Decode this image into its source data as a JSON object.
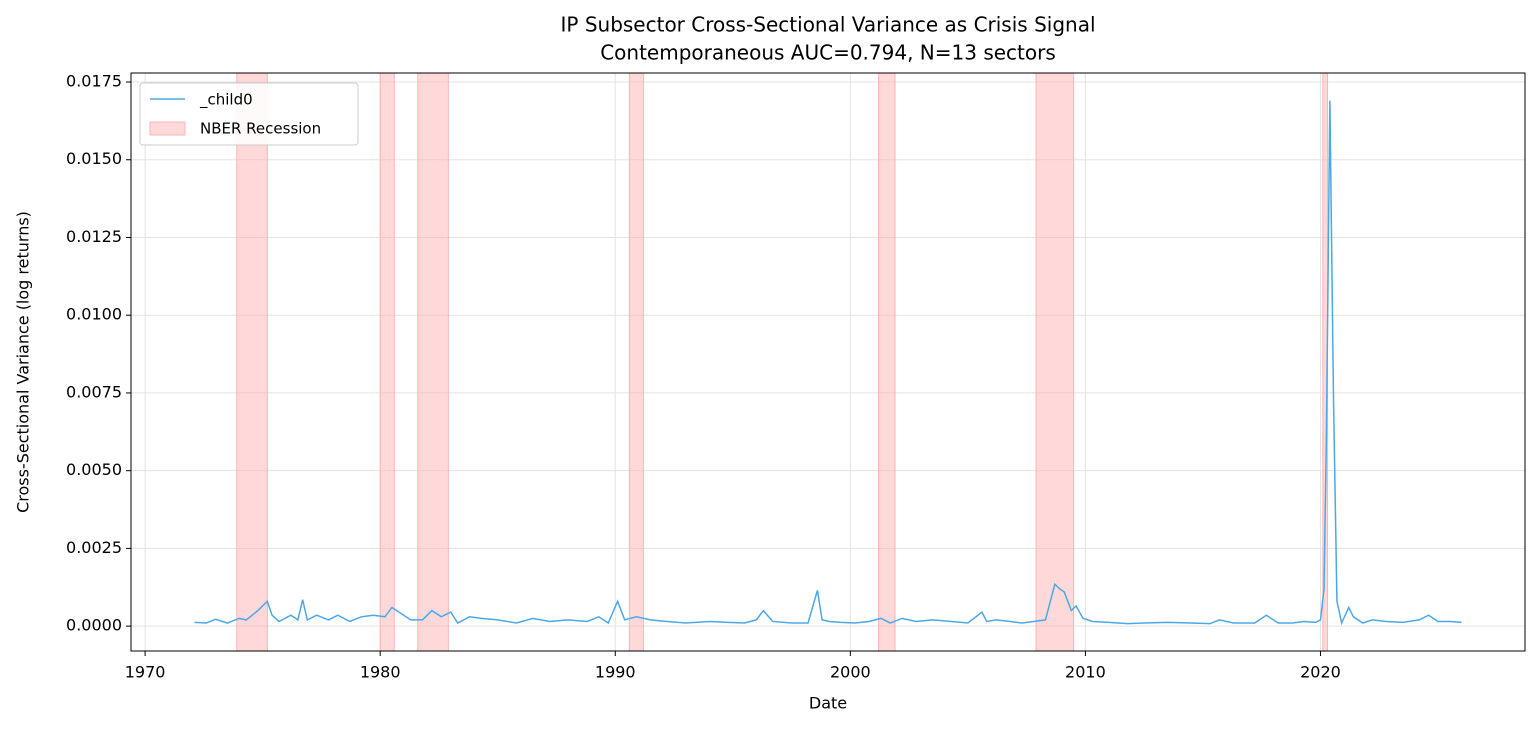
{
  "chart_data": {
    "type": "line",
    "title": "IP Subsector Cross-Sectional Variance as Crisis Signal",
    "subtitle": "Contemporaneous AUC=0.794, N=13 sectors",
    "x_label": "Date",
    "y_label": "Cross-Sectional Variance (log returns)",
    "x": [
      1972.1,
      1972.6,
      1973.0,
      1973.5,
      1974.0,
      1974.3,
      1974.8,
      1975.2,
      1975.4,
      1975.7,
      1976.2,
      1976.5,
      1976.7,
      1976.9,
      1977.3,
      1977.8,
      1978.2,
      1978.7,
      1979.2,
      1979.7,
      1980.2,
      1980.5,
      1980.8,
      1981.3,
      1981.8,
      1982.2,
      1982.6,
      1983.0,
      1983.3,
      1983.8,
      1984.3,
      1985.0,
      1985.8,
      1986.5,
      1987.2,
      1988.0,
      1988.8,
      1989.3,
      1989.7,
      1990.1,
      1990.4,
      1990.9,
      1991.5,
      1992.2,
      1993.0,
      1994.0,
      1994.8,
      1995.5,
      1996.0,
      1996.3,
      1996.7,
      1997.5,
      1998.2,
      1998.6,
      1998.8,
      1999.1,
      1999.6,
      2000.2,
      2000.8,
      2001.3,
      2001.7,
      2002.2,
      2002.8,
      2003.5,
      2004.3,
      2005.0,
      2005.6,
      2005.8,
      2006.2,
      2006.8,
      2007.3,
      2007.8,
      2008.3,
      2008.7,
      2008.9,
      2009.1,
      2009.4,
      2009.6,
      2009.9,
      2010.3,
      2011.0,
      2011.8,
      2012.5,
      2013.5,
      2014.5,
      2015.3,
      2015.7,
      2016.3,
      2017.2,
      2017.7,
      2018.2,
      2018.8,
      2019.3,
      2019.8,
      2020.0,
      2020.15,
      2020.25,
      2020.4,
      2020.55,
      2020.7,
      2020.9,
      2021.2,
      2021.4,
      2021.8,
      2022.2,
      2022.8,
      2023.5,
      2024.2,
      2024.6,
      2025.0,
      2025.5,
      2026.0
    ],
    "series": [
      {
        "name": "_child0",
        "color": "#4ba8e8",
        "values": [
          0.00012,
          0.0001,
          0.00022,
          0.0001,
          0.00025,
          0.0002,
          0.0005,
          0.0008,
          0.00035,
          0.00015,
          0.00035,
          0.0002,
          0.00085,
          0.0002,
          0.00035,
          0.0002,
          0.00035,
          0.00015,
          0.0003,
          0.00035,
          0.0003,
          0.0006,
          0.00045,
          0.0002,
          0.0002,
          0.0005,
          0.0003,
          0.00045,
          0.0001,
          0.0003,
          0.00025,
          0.0002,
          0.0001,
          0.00025,
          0.00015,
          0.0002,
          0.00015,
          0.0003,
          0.0001,
          0.0008,
          0.0002,
          0.0003,
          0.0002,
          0.00015,
          0.0001,
          0.00015,
          0.00012,
          0.0001,
          0.0002,
          0.0005,
          0.00015,
          0.0001,
          0.0001,
          0.00115,
          0.0002,
          0.00015,
          0.00012,
          0.0001,
          0.00015,
          0.00025,
          0.0001,
          0.00025,
          0.00015,
          0.0002,
          0.00015,
          0.0001,
          0.00045,
          0.00015,
          0.0002,
          0.00015,
          0.0001,
          0.00015,
          0.0002,
          0.00135,
          0.0012,
          0.0011,
          0.0005,
          0.00065,
          0.00025,
          0.00015,
          0.00012,
          8e-05,
          0.0001,
          0.00012,
          0.0001,
          8e-05,
          0.0002,
          0.0001,
          0.0001,
          0.00035,
          0.0001,
          0.0001,
          0.00015,
          0.00012,
          0.0002,
          0.0012,
          0.006,
          0.0169,
          0.0075,
          0.0008,
          0.0001,
          0.0006,
          0.0003,
          0.0001,
          0.0002,
          0.00015,
          0.00012,
          0.0002,
          0.00035,
          0.00015,
          0.00015,
          0.00012
        ]
      }
    ],
    "shaded_regions": {
      "name": "NBER Recession",
      "color": "#ffb3b3",
      "spans": [
        [
          1973.9,
          1975.2
        ],
        [
          1980.0,
          1980.6
        ],
        [
          1981.6,
          1982.9
        ],
        [
          1990.6,
          1991.2
        ],
        [
          2001.2,
          2001.9
        ],
        [
          2007.9,
          2009.5
        ],
        [
          2020.1,
          2020.3
        ]
      ]
    },
    "xlim": [
      1969.4,
      2028.7
    ],
    "ylim": [
      -0.0008,
      0.01779
    ],
    "xticks": [
      1970,
      1980,
      1990,
      2000,
      2010,
      2020
    ],
    "yticks": [
      {
        "value": 0,
        "label": "0.0000"
      },
      {
        "value": 0.0025,
        "label": "0.0025"
      },
      {
        "value": 0.005,
        "label": "0.0050"
      },
      {
        "value": 0.0075,
        "label": "0.0075"
      },
      {
        "value": 0.01,
        "label": "0.0100"
      },
      {
        "value": 0.0125,
        "label": "0.0125"
      },
      {
        "value": 0.015,
        "label": "0.0150"
      },
      {
        "value": 0.0175,
        "label": "0.0175"
      }
    ],
    "grid": true,
    "legend": "upper left"
  }
}
